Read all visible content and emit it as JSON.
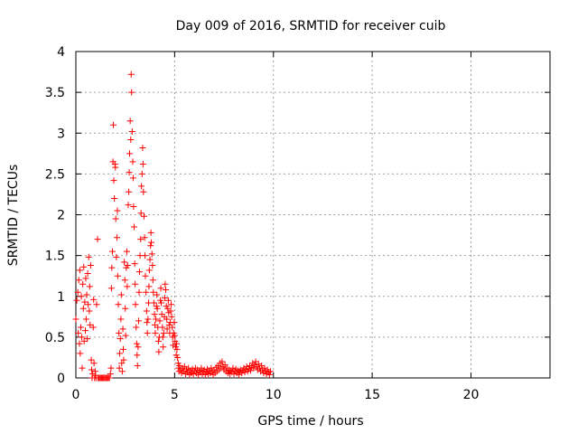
{
  "chart_data": {
    "type": "scatter",
    "title": "Day 009 of 2016, SRMTID for receiver cuib",
    "xlabel": "GPS time / hours",
    "ylabel": "SRMTID / TECUs",
    "xlim": [
      0,
      24
    ],
    "ylim": [
      0,
      4
    ],
    "xticks": [
      0,
      5,
      10,
      15,
      20
    ],
    "xtick_labels": [
      "0",
      "5",
      "10",
      "15",
      "20"
    ],
    "yticks": [
      0,
      0.5,
      1,
      1.5,
      2,
      2.5,
      3,
      3.5,
      4
    ],
    "ytick_labels": [
      "0",
      "0.5",
      "1",
      "1.5",
      "2",
      "2.5",
      "3",
      "3.5",
      "4"
    ],
    "grid": true,
    "marker": "+",
    "color": "#ff0000",
    "series": [
      {
        "name": "SRMTID",
        "points": [
          [
            0.0,
            0.72
          ],
          [
            0.05,
            0.95
          ],
          [
            0.1,
            1.05
          ],
          [
            0.12,
            0.55
          ],
          [
            0.15,
            1.2
          ],
          [
            0.18,
            0.42
          ],
          [
            0.2,
            1.32
          ],
          [
            0.22,
            0.3
          ],
          [
            0.25,
            0.62
          ],
          [
            0.28,
            1.0
          ],
          [
            0.3,
            0.5
          ],
          [
            0.32,
            0.12
          ],
          [
            0.35,
            1.15
          ],
          [
            0.38,
            0.85
          ],
          [
            0.4,
            1.36
          ],
          [
            0.42,
            0.45
          ],
          [
            0.45,
            0.93
          ],
          [
            0.48,
            0.58
          ],
          [
            0.5,
            1.22
          ],
          [
            0.52,
            0.72
          ],
          [
            0.55,
            1.02
          ],
          [
            0.58,
            0.48
          ],
          [
            0.6,
            1.28
          ],
          [
            0.62,
            0.9
          ],
          [
            0.65,
            1.48
          ],
          [
            0.68,
            0.82
          ],
          [
            0.7,
            1.12
          ],
          [
            0.72,
            0.65
          ],
          [
            0.75,
            1.38
          ],
          [
            0.78,
            0.22
          ],
          [
            0.8,
            0.1
          ],
          [
            0.82,
            0.0
          ],
          [
            0.85,
            0.05
          ],
          [
            0.88,
            0.62
          ],
          [
            0.9,
            0.96
          ],
          [
            0.92,
            0.18
          ],
          [
            0.95,
            0.0
          ],
          [
            0.98,
            0.08
          ],
          [
            1.0,
            0.03
          ],
          [
            1.02,
            0.0
          ],
          [
            1.05,
            0.9
          ],
          [
            1.1,
            1.7
          ],
          [
            1.12,
            0.0
          ],
          [
            1.15,
            0.0
          ],
          [
            1.2,
            0.0
          ],
          [
            1.25,
            0.0
          ],
          [
            1.3,
            0.0
          ],
          [
            1.35,
            0.0
          ],
          [
            1.4,
            0.0
          ],
          [
            1.45,
            0.0
          ],
          [
            1.5,
            0.0
          ],
          [
            1.55,
            0.0
          ],
          [
            1.6,
            0.0
          ],
          [
            1.65,
            0.0
          ],
          [
            1.7,
            0.0
          ],
          [
            1.75,
            0.05
          ],
          [
            1.78,
            0.12
          ],
          [
            1.8,
            1.1
          ],
          [
            1.82,
            1.35
          ],
          [
            1.85,
            1.55
          ],
          [
            1.88,
            2.65
          ],
          [
            1.9,
            3.1
          ],
          [
            1.92,
            2.42
          ],
          [
            1.95,
            2.2
          ],
          [
            1.98,
            2.62
          ],
          [
            2.0,
            2.58
          ],
          [
            2.02,
            1.95
          ],
          [
            2.05,
            1.48
          ],
          [
            2.08,
            1.72
          ],
          [
            2.1,
            2.05
          ],
          [
            2.12,
            1.25
          ],
          [
            2.15,
            0.9
          ],
          [
            2.18,
            0.55
          ],
          [
            2.2,
            0.12
          ],
          [
            2.22,
            0.3
          ],
          [
            2.25,
            0.48
          ],
          [
            2.28,
            0.72
          ],
          [
            2.3,
            1.02
          ],
          [
            2.32,
            0.18
          ],
          [
            2.35,
            0.08
          ],
          [
            2.38,
            0.6
          ],
          [
            2.4,
            0.35
          ],
          [
            2.42,
            0.22
          ],
          [
            2.45,
            1.42
          ],
          [
            2.48,
            1.2
          ],
          [
            2.5,
            0.85
          ],
          [
            2.52,
            0.52
          ],
          [
            2.55,
            1.35
          ],
          [
            2.58,
            1.55
          ],
          [
            2.6,
            1.12
          ],
          [
            2.62,
            1.38
          ],
          [
            2.65,
            2.12
          ],
          [
            2.68,
            2.28
          ],
          [
            2.7,
            2.52
          ],
          [
            2.72,
            2.75
          ],
          [
            2.75,
            3.15
          ],
          [
            2.78,
            2.92
          ],
          [
            2.8,
            3.72
          ],
          [
            2.82,
            3.5
          ],
          [
            2.85,
            3.02
          ],
          [
            2.88,
            2.65
          ],
          [
            2.9,
            2.45
          ],
          [
            2.92,
            2.1
          ],
          [
            2.95,
            1.85
          ],
          [
            2.98,
            1.4
          ],
          [
            3.0,
            1.15
          ],
          [
            3.02,
            0.9
          ],
          [
            3.05,
            0.62
          ],
          [
            3.08,
            0.42
          ],
          [
            3.1,
            0.28
          ],
          [
            3.12,
            0.15
          ],
          [
            3.15,
            0.38
          ],
          [
            3.18,
            0.7
          ],
          [
            3.2,
            1.05
          ],
          [
            3.22,
            1.3
          ],
          [
            3.25,
            1.5
          ],
          [
            3.28,
            1.7
          ],
          [
            3.3,
            2.02
          ],
          [
            3.32,
            2.35
          ],
          [
            3.35,
            2.5
          ],
          [
            3.38,
            2.82
          ],
          [
            3.4,
            2.62
          ],
          [
            3.42,
            2.28
          ],
          [
            3.45,
            1.98
          ],
          [
            3.48,
            1.72
          ],
          [
            3.5,
            1.5
          ],
          [
            3.52,
            1.25
          ],
          [
            3.55,
            1.05
          ],
          [
            3.58,
            0.82
          ],
          [
            3.6,
            0.68
          ],
          [
            3.62,
            0.55
          ],
          [
            3.65,
            0.72
          ],
          [
            3.68,
            0.92
          ],
          [
            3.7,
            1.12
          ],
          [
            3.72,
            1.32
          ],
          [
            3.75,
            1.45
          ],
          [
            3.78,
            1.62
          ],
          [
            3.8,
            1.78
          ],
          [
            3.82,
            1.66
          ],
          [
            3.85,
            1.52
          ],
          [
            3.88,
            1.38
          ],
          [
            3.9,
            1.2
          ],
          [
            3.92,
            1.05
          ],
          [
            3.95,
            0.92
          ],
          [
            3.98,
            0.78
          ],
          [
            4.0,
            0.65
          ],
          [
            4.02,
            0.55
          ],
          [
            4.05,
            0.72
          ],
          [
            4.08,
            0.88
          ],
          [
            4.1,
            1.02
          ],
          [
            4.12,
            0.85
          ],
          [
            4.15,
            0.62
          ],
          [
            4.18,
            0.45
          ],
          [
            4.2,
            0.32
          ],
          [
            4.22,
            0.5
          ],
          [
            4.25,
            0.7
          ],
          [
            4.28,
            0.95
          ],
          [
            4.3,
            1.1
          ],
          [
            4.32,
            0.92
          ],
          [
            4.35,
            0.78
          ],
          [
            4.38,
            0.62
          ],
          [
            4.4,
            0.5
          ],
          [
            4.42,
            0.38
          ],
          [
            4.45,
            0.55
          ],
          [
            4.48,
            0.75
          ],
          [
            4.5,
            0.98
          ],
          [
            4.52,
            1.15
          ],
          [
            4.55,
            1.08
          ],
          [
            4.58,
            0.88
          ],
          [
            4.6,
            0.72
          ],
          [
            4.62,
            0.6
          ],
          [
            4.65,
            0.85
          ],
          [
            4.68,
            0.95
          ],
          [
            4.7,
            0.8
          ],
          [
            4.72,
            0.65
          ],
          [
            4.75,
            0.55
          ],
          [
            4.78,
            0.68
          ],
          [
            4.8,
            0.82
          ],
          [
            4.82,
            0.9
          ],
          [
            4.85,
            0.75
          ],
          [
            4.88,
            0.62
          ],
          [
            4.9,
            0.5
          ],
          [
            4.92,
            0.4
          ],
          [
            4.95,
            0.55
          ],
          [
            4.98,
            0.68
          ],
          [
            5.0,
            0.52
          ],
          [
            5.02,
            0.45
          ],
          [
            5.05,
            0.38
          ],
          [
            5.08,
            0.28
          ],
          [
            5.1,
            0.42
          ],
          [
            5.12,
            0.35
          ],
          [
            5.15,
            0.25
          ],
          [
            5.18,
            0.18
          ],
          [
            5.2,
            0.12
          ],
          [
            5.22,
            0.08
          ],
          [
            5.25,
            0.15
          ],
          [
            5.3,
            0.1
          ],
          [
            5.35,
            0.06
          ],
          [
            5.4,
            0.12
          ],
          [
            5.45,
            0.08
          ],
          [
            5.5,
            0.14
          ],
          [
            5.55,
            0.05
          ],
          [
            5.6,
            0.1
          ],
          [
            5.65,
            0.07
          ],
          [
            5.7,
            0.12
          ],
          [
            5.75,
            0.04
          ],
          [
            5.8,
            0.09
          ],
          [
            5.85,
            0.06
          ],
          [
            5.9,
            0.11
          ],
          [
            5.95,
            0.05
          ],
          [
            6.0,
            0.08
          ],
          [
            6.05,
            0.12
          ],
          [
            6.1,
            0.06
          ],
          [
            6.15,
            0.1
          ],
          [
            6.2,
            0.04
          ],
          [
            6.25,
            0.09
          ],
          [
            6.3,
            0.07
          ],
          [
            6.35,
            0.12
          ],
          [
            6.4,
            0.05
          ],
          [
            6.45,
            0.08
          ],
          [
            6.5,
            0.1
          ],
          [
            6.55,
            0.04
          ],
          [
            6.6,
            0.07
          ],
          [
            6.65,
            0.11
          ],
          [
            6.7,
            0.05
          ],
          [
            6.75,
            0.09
          ],
          [
            6.8,
            0.06
          ],
          [
            6.85,
            0.12
          ],
          [
            6.9,
            0.08
          ],
          [
            6.95,
            0.04
          ],
          [
            7.0,
            0.1
          ],
          [
            7.05,
            0.06
          ],
          [
            7.1,
            0.13
          ],
          [
            7.15,
            0.08
          ],
          [
            7.2,
            0.15
          ],
          [
            7.25,
            0.1
          ],
          [
            7.3,
            0.18
          ],
          [
            7.35,
            0.12
          ],
          [
            7.4,
            0.2
          ],
          [
            7.45,
            0.14
          ],
          [
            7.5,
            0.1
          ],
          [
            7.55,
            0.16
          ],
          [
            7.6,
            0.08
          ],
          [
            7.65,
            0.12
          ],
          [
            7.7,
            0.06
          ],
          [
            7.75,
            0.1
          ],
          [
            7.8,
            0.05
          ],
          [
            7.85,
            0.09
          ],
          [
            7.9,
            0.07
          ],
          [
            7.95,
            0.12
          ],
          [
            8.0,
            0.05
          ],
          [
            8.05,
            0.08
          ],
          [
            8.1,
            0.11
          ],
          [
            8.15,
            0.06
          ],
          [
            8.2,
            0.09
          ],
          [
            8.25,
            0.04
          ],
          [
            8.3,
            0.08
          ],
          [
            8.35,
            0.1
          ],
          [
            8.4,
            0.06
          ],
          [
            8.45,
            0.09
          ],
          [
            8.5,
            0.12
          ],
          [
            8.55,
            0.07
          ],
          [
            8.6,
            0.1
          ],
          [
            8.65,
            0.14
          ],
          [
            8.7,
            0.08
          ],
          [
            8.75,
            0.11
          ],
          [
            8.8,
            0.15
          ],
          [
            8.85,
            0.09
          ],
          [
            8.9,
            0.13
          ],
          [
            8.95,
            0.18
          ],
          [
            9.0,
            0.12
          ],
          [
            9.05,
            0.16
          ],
          [
            9.1,
            0.2
          ],
          [
            9.15,
            0.14
          ],
          [
            9.2,
            0.1
          ],
          [
            9.25,
            0.17
          ],
          [
            9.3,
            0.12
          ],
          [
            9.35,
            0.08
          ],
          [
            9.4,
            0.15
          ],
          [
            9.45,
            0.1
          ],
          [
            9.5,
            0.06
          ],
          [
            9.55,
            0.12
          ],
          [
            9.6,
            0.08
          ],
          [
            9.65,
            0.05
          ],
          [
            9.7,
            0.1
          ],
          [
            9.75,
            0.07
          ],
          [
            9.8,
            0.04
          ],
          [
            9.85,
            0.08
          ]
        ]
      }
    ]
  }
}
